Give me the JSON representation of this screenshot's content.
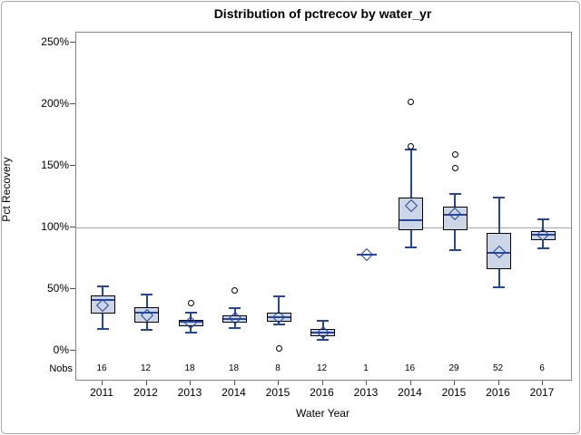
{
  "chart_data": {
    "type": "boxplot",
    "title": "Distribution of pctrecov by water_yr",
    "xlabel": "Water Year",
    "ylabel": "Pct Recovery",
    "nobs_label": "Nobs",
    "y_ticks": [
      {
        "value": 0,
        "label": "0%"
      },
      {
        "value": 50,
        "label": "50%"
      },
      {
        "value": 100,
        "label": "100%"
      },
      {
        "value": 150,
        "label": "150%"
      },
      {
        "value": 200,
        "label": "200%"
      },
      {
        "value": 250,
        "label": "250%"
      }
    ],
    "ylim": [
      -23.5,
      258.2
    ],
    "reference_line": 100,
    "legend_position": "none",
    "grid": false,
    "categories": [
      "2011",
      "2012",
      "2013",
      "2014",
      "2015",
      "2016",
      "2013",
      "2014",
      "2015",
      "2016",
      "2017"
    ],
    "nobs": [
      "16",
      "12",
      "18",
      "18",
      "8",
      "12",
      "1",
      "16",
      "29",
      "52",
      "6"
    ],
    "series": [
      {
        "category": "2011",
        "nobs": "16",
        "low": 18,
        "q1": 30,
        "median": 41,
        "q3": 45,
        "high": 52,
        "mean": 37,
        "outliers": []
      },
      {
        "category": "2012",
        "nobs": "12",
        "low": 17,
        "q1": 23,
        "median": 31,
        "q3": 35,
        "high": 46,
        "mean": 29,
        "outliers": []
      },
      {
        "category": "2013",
        "nobs": "18",
        "low": 15,
        "q1": 20,
        "median": 23.5,
        "q3": 25,
        "high": 31,
        "mean": 23,
        "outliers": [
          39
        ]
      },
      {
        "category": "2014",
        "nobs": "18",
        "low": 18.5,
        "q1": 23,
        "median": 26,
        "q3": 28.5,
        "high": 34.5,
        "mean": 26.5,
        "outliers": [
          49
        ]
      },
      {
        "category": "2015",
        "nobs": "8",
        "low": 21,
        "q1": 23.5,
        "median": 27,
        "q3": 31,
        "high": 44,
        "mean": 27,
        "outliers": [
          2
        ]
      },
      {
        "category": "2016",
        "nobs": "12",
        "low": 8.5,
        "q1": 12,
        "median": 15,
        "q3": 17.5,
        "high": 24,
        "mean": 15,
        "outliers": []
      },
      {
        "category": "2013",
        "nobs": "1",
        "low": 78,
        "q1": 78,
        "median": 78,
        "q3": 78,
        "high": 78,
        "mean": 78,
        "outliers": []
      },
      {
        "category": "2014",
        "nobs": "16",
        "low": 84,
        "q1": 98,
        "median": 106,
        "q3": 124,
        "high": 163,
        "mean": 118,
        "outliers": [
          166,
          202
        ]
      },
      {
        "category": "2015",
        "nobs": "29",
        "low": 82,
        "q1": 98,
        "median": 110,
        "q3": 117,
        "high": 127,
        "mean": 111,
        "outliers": [
          148,
          159
        ]
      },
      {
        "category": "2016",
        "nobs": "52",
        "low": 51.5,
        "q1": 66,
        "median": 79.5,
        "q3": 95.5,
        "high": 124,
        "mean": 80,
        "outliers": []
      },
      {
        "category": "2017",
        "nobs": "6",
        "low": 83,
        "q1": 90,
        "median": 94,
        "q3": 97,
        "high": 107,
        "mean": 94,
        "outliers": []
      }
    ]
  },
  "colors": {
    "box_fill": "#ccd6e6",
    "box_border": "#000000",
    "whisker": "#24469e",
    "median": "#24469e",
    "mean": "#24469e",
    "outlier": "#000000",
    "reference_line": "#a6a6a6",
    "frame": "#858585",
    "text": "#000000"
  }
}
